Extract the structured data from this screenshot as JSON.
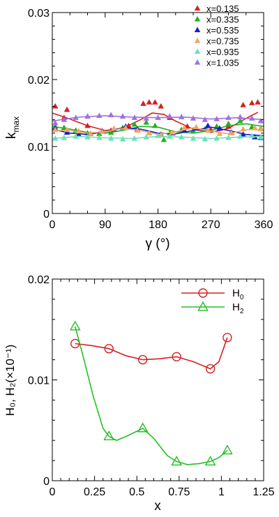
{
  "chart_data": [
    {
      "type": "scatter",
      "xlabel": "γ (°)",
      "ylabel": "k_max",
      "ylabel_main": "k",
      "ylabel_sub": "max",
      "xlim": [
        0,
        360
      ],
      "ylim": [
        0,
        0.03
      ],
      "xticks": [
        0,
        90,
        180,
        270,
        360
      ],
      "yticks": [
        0,
        0.01,
        0.02,
        0.03
      ],
      "ytick_labels": [
        "0",
        "0.01",
        "0.02",
        "0.03"
      ],
      "grid": false,
      "legend_position": "top-right",
      "series": [
        {
          "name": "x=0.135",
          "color": "#d42020",
          "points": [
            [
              5,
              0.016
            ],
            [
              25,
              0.0155
            ],
            [
              155,
              0.0164
            ],
            [
              165,
              0.0166
            ],
            [
              175,
              0.0166
            ],
            [
              185,
              0.016
            ],
            [
              325,
              0.0162
            ],
            [
              340,
              0.0165
            ],
            [
              350,
              0.0166
            ],
            [
              20,
              0.0143
            ],
            [
              60,
              0.0131
            ],
            [
              100,
              0.0124
            ],
            [
              130,
              0.0131
            ],
            [
              200,
              0.0143
            ],
            [
              230,
              0.013
            ],
            [
              270,
              0.0125
            ],
            [
              300,
              0.013
            ]
          ],
          "curve": [
            [
              0,
              0.015
            ],
            [
              30,
              0.0141
            ],
            [
              60,
              0.0131
            ],
            [
              90,
              0.0124
            ],
            [
              120,
              0.0127
            ],
            [
              150,
              0.014
            ],
            [
              170,
              0.015
            ],
            [
              190,
              0.0148
            ],
            [
              210,
              0.0138
            ],
            [
              240,
              0.0126
            ],
            [
              270,
              0.0121
            ],
            [
              300,
              0.0127
            ],
            [
              330,
              0.0142
            ],
            [
              350,
              0.0151
            ]
          ]
        },
        {
          "name": "x=0.335",
          "color": "#22b022",
          "points": [
            [
              5,
              0.013
            ],
            [
              20,
              0.0128
            ],
            [
              40,
              0.0124
            ],
            [
              60,
              0.012
            ],
            [
              80,
              0.0119
            ],
            [
              100,
              0.0121
            ],
            [
              120,
              0.0128
            ],
            [
              140,
              0.0133
            ],
            [
              160,
              0.0136
            ],
            [
              175,
              0.0131
            ],
            [
              190,
              0.011
            ],
            [
              200,
              0.012
            ],
            [
              220,
              0.0125
            ],
            [
              240,
              0.0123
            ],
            [
              260,
              0.0126
            ],
            [
              280,
              0.013
            ],
            [
              300,
              0.0134
            ],
            [
              320,
              0.0138
            ],
            [
              340,
              0.0129
            ],
            [
              355,
              0.0127
            ]
          ],
          "curve": [
            [
              0,
              0.013
            ],
            [
              30,
              0.0126
            ],
            [
              60,
              0.0121
            ],
            [
              90,
              0.012
            ],
            [
              120,
              0.0124
            ],
            [
              150,
              0.013
            ],
            [
              180,
              0.0129
            ],
            [
              210,
              0.0122
            ],
            [
              240,
              0.012
            ],
            [
              270,
              0.0124
            ],
            [
              300,
              0.0131
            ],
            [
              330,
              0.0134
            ],
            [
              360,
              0.013
            ]
          ]
        },
        {
          "name": "x=0.535",
          "color": "#1a1acc",
          "points": [
            [
              5,
              0.0127
            ],
            [
              25,
              0.0121
            ],
            [
              45,
              0.0118
            ],
            [
              65,
              0.0119
            ],
            [
              85,
              0.0123
            ],
            [
              105,
              0.0126
            ],
            [
              125,
              0.013
            ],
            [
              145,
              0.0126
            ],
            [
              165,
              0.012
            ],
            [
              185,
              0.0118
            ],
            [
              205,
              0.012
            ],
            [
              225,
              0.0124
            ],
            [
              245,
              0.0127
            ],
            [
              265,
              0.0131
            ],
            [
              285,
              0.0127
            ],
            [
              305,
              0.0121
            ],
            [
              325,
              0.0118
            ],
            [
              345,
              0.0114
            ],
            [
              355,
              0.0113
            ]
          ],
          "curve": [
            [
              0,
              0.0126
            ],
            [
              30,
              0.012
            ],
            [
              60,
              0.0118
            ],
            [
              90,
              0.0122
            ],
            [
              120,
              0.0128
            ],
            [
              150,
              0.0126
            ],
            [
              180,
              0.012
            ],
            [
              210,
              0.0119
            ],
            [
              240,
              0.0124
            ],
            [
              270,
              0.0129
            ],
            [
              300,
              0.0124
            ],
            [
              330,
              0.0118
            ],
            [
              360,
              0.0116
            ]
          ]
        },
        {
          "name": "x=0.735",
          "color": "#f4a460",
          "points": [
            [
              5,
              0.0125
            ],
            [
              25,
              0.0125
            ],
            [
              45,
              0.0123
            ],
            [
              65,
              0.0119
            ],
            [
              85,
              0.0122
            ],
            [
              105,
              0.0127
            ],
            [
              125,
              0.0128
            ],
            [
              145,
              0.0124
            ],
            [
              165,
              0.012
            ],
            [
              185,
              0.0117
            ],
            [
              205,
              0.0121
            ],
            [
              225,
              0.0128
            ],
            [
              245,
              0.0129
            ],
            [
              265,
              0.0124
            ],
            [
              285,
              0.0119
            ],
            [
              305,
              0.012
            ],
            [
              325,
              0.0126
            ],
            [
              345,
              0.0128
            ],
            [
              355,
              0.0126
            ]
          ],
          "curve": [
            [
              0,
              0.0124
            ],
            [
              30,
              0.0124
            ],
            [
              60,
              0.012
            ],
            [
              90,
              0.0122
            ],
            [
              120,
              0.0127
            ],
            [
              150,
              0.0124
            ],
            [
              180,
              0.0118
            ],
            [
              210,
              0.0122
            ],
            [
              240,
              0.0128
            ],
            [
              270,
              0.0123
            ],
            [
              300,
              0.0119
            ],
            [
              330,
              0.0125
            ],
            [
              360,
              0.0125
            ]
          ]
        },
        {
          "name": "x=0.935",
          "color": "#6ee0b8",
          "points": [
            [
              5,
              0.0112
            ],
            [
              20,
              0.0113
            ],
            [
              40,
              0.0115
            ],
            [
              60,
              0.0114
            ],
            [
              80,
              0.0113
            ],
            [
              100,
              0.0112
            ],
            [
              120,
              0.0111
            ],
            [
              140,
              0.0112
            ],
            [
              160,
              0.0114
            ],
            [
              180,
              0.0116
            ],
            [
              200,
              0.0115
            ],
            [
              220,
              0.0114
            ],
            [
              240,
              0.0112
            ],
            [
              260,
              0.0111
            ],
            [
              280,
              0.0112
            ],
            [
              300,
              0.0113
            ],
            [
              320,
              0.0115
            ],
            [
              340,
              0.0116
            ],
            [
              355,
              0.0114
            ]
          ],
          "curve": [
            [
              0,
              0.0112
            ],
            [
              45,
              0.0115
            ],
            [
              90,
              0.0113
            ],
            [
              135,
              0.0112
            ],
            [
              180,
              0.0115
            ],
            [
              225,
              0.0114
            ],
            [
              270,
              0.0112
            ],
            [
              315,
              0.0114
            ],
            [
              360,
              0.0115
            ]
          ]
        },
        {
          "name": "x=1.035",
          "color": "#a070e0",
          "points": [
            [
              5,
              0.0135
            ],
            [
              20,
              0.014
            ],
            [
              40,
              0.0143
            ],
            [
              60,
              0.0145
            ],
            [
              80,
              0.0146
            ],
            [
              100,
              0.0147
            ],
            [
              120,
              0.0145
            ],
            [
              140,
              0.0143
            ],
            [
              160,
              0.0142
            ],
            [
              180,
              0.0143
            ],
            [
              200,
              0.0145
            ],
            [
              220,
              0.0144
            ],
            [
              240,
              0.0142
            ],
            [
              260,
              0.014
            ],
            [
              280,
              0.0141
            ],
            [
              300,
              0.0143
            ],
            [
              320,
              0.0144
            ],
            [
              340,
              0.0142
            ],
            [
              355,
              0.0138
            ]
          ],
          "curve": [
            [
              0,
              0.0138
            ],
            [
              45,
              0.0144
            ],
            [
              90,
              0.0146
            ],
            [
              135,
              0.0144
            ],
            [
              180,
              0.0143
            ],
            [
              225,
              0.0144
            ],
            [
              270,
              0.0141
            ],
            [
              315,
              0.0143
            ],
            [
              360,
              0.014
            ]
          ]
        }
      ]
    },
    {
      "type": "line",
      "xlabel": "x",
      "ylabel": "H₀, H₂(×10⁻¹)",
      "xlim": [
        0,
        1.25
      ],
      "ylim": [
        0,
        0.02
      ],
      "xticks": [
        0,
        0.25,
        0.5,
        0.75,
        1,
        1.25
      ],
      "xtick_labels": [
        "0",
        "0.25",
        "0.5",
        "0.75",
        "1",
        "1.25"
      ],
      "yticks": [
        0,
        0.01,
        0.02
      ],
      "ytick_labels": [
        "0",
        "0.01",
        "0.02"
      ],
      "grid": false,
      "legend_position": "top-right",
      "series": [
        {
          "name": "H₀",
          "name_main": "H",
          "name_sub": "0",
          "color": "#d42020",
          "marker": "circle",
          "x": [
            0.135,
            0.335,
            0.535,
            0.735,
            0.935,
            1.035
          ],
          "y": [
            0.0136,
            0.0131,
            0.012,
            0.0123,
            0.0111,
            0.0142
          ],
          "curve": [
            [
              0.135,
              0.0136
            ],
            [
              0.235,
              0.0134
            ],
            [
              0.335,
              0.0131
            ],
            [
              0.435,
              0.0124
            ],
            [
              0.535,
              0.012
            ],
            [
              0.635,
              0.0121
            ],
            [
              0.735,
              0.0123
            ],
            [
              0.835,
              0.0118
            ],
            [
              0.935,
              0.0111
            ],
            [
              0.985,
              0.0118
            ],
            [
              1.035,
              0.0142
            ]
          ]
        },
        {
          "name": "H₂",
          "name_main": "H",
          "name_sub": "2",
          "color": "#22c022",
          "marker": "triangle",
          "x": [
            0.135,
            0.335,
            0.535,
            0.735,
            0.935,
            1.035
          ],
          "y": [
            0.0153,
            0.0044,
            0.0052,
            0.0019,
            0.0019,
            0.003
          ],
          "curve": [
            [
              0.135,
              0.0153
            ],
            [
              0.18,
              0.0125
            ],
            [
              0.24,
              0.0085
            ],
            [
              0.3,
              0.0052
            ],
            [
              0.335,
              0.0044
            ],
            [
              0.38,
              0.004
            ],
            [
              0.45,
              0.0045
            ],
            [
              0.535,
              0.0052
            ],
            [
              0.6,
              0.0042
            ],
            [
              0.68,
              0.0025
            ],
            [
              0.735,
              0.0019
            ],
            [
              0.8,
              0.0016
            ],
            [
              0.87,
              0.0017
            ],
            [
              0.935,
              0.0019
            ],
            [
              0.985,
              0.0023
            ],
            [
              1.035,
              0.003
            ]
          ]
        }
      ]
    }
  ]
}
